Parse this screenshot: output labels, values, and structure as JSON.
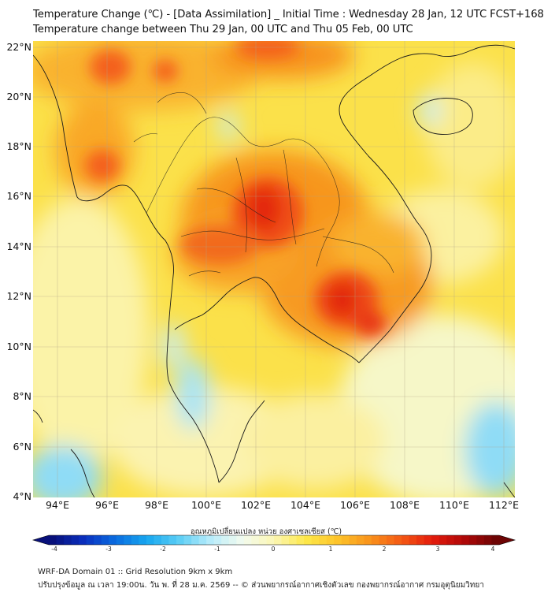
{
  "title": {
    "line1": "Temperature Change (℃) - [Data Assimilation] _ Initial Time : Wednesday 28 Jan, 12 UTC FCST+168",
    "line2": "Temperature change between Thu 29 Jan, 00 UTC and Thu 05 Feb, 00 UTC"
  },
  "map": {
    "lat_labels": [
      "22°N",
      "20°N",
      "18°N",
      "16°N",
      "14°N",
      "12°N",
      "10°N",
      "8°N",
      "6°N",
      "4°N"
    ],
    "lon_labels": [
      "94°E",
      "96°E",
      "98°E",
      "100°E",
      "102°E",
      "104°E",
      "106°E",
      "108°E",
      "110°E",
      "112°E"
    ],
    "lat_values": [
      22,
      20,
      18,
      16,
      14,
      12,
      10,
      8,
      6,
      4
    ],
    "lon_values": [
      94,
      96,
      98,
      100,
      102,
      104,
      106,
      108,
      110,
      112
    ],
    "extent": {
      "lon_min": 93,
      "lon_max": 112.3,
      "lat_min": 4,
      "lat_max": 22.3
    }
  },
  "colorbar": {
    "label": "อุณหภูมิเปลี่ยนแปลง หน่วย องศาเซลเซียส (℃)",
    "ticks": [
      "-4",
      "-3",
      "-2",
      "-1",
      "0",
      "1",
      "2",
      "3",
      "4"
    ],
    "tick_values": [
      -4,
      -3,
      -2,
      -1,
      0,
      1,
      2,
      3,
      4
    ],
    "colors": [
      "#08107a",
      "#0a2fbf",
      "#0a6de0",
      "#18a8ef",
      "#5ccef5",
      "#b8ecfa",
      "#f2fbef",
      "#fbf6b4",
      "#fde84a",
      "#fdc42a",
      "#f9941c",
      "#f45a14",
      "#e41c0c",
      "#b00808",
      "#6d0404"
    ]
  },
  "footer": {
    "line1": "WRF-DA Domain 01 :: Grid Resolution 9km x 9km",
    "line2": "ปรับปรุงข้อมูล ณ เวลา 19:00น. วัน พ. ที่ 28 ม.ค. 2569 -- © ส่วนพยากรณ์อากาศเชิงตัวเลข กองพยากรณ์อากาศ กรมอุตุนิยมวิทยา"
  }
}
